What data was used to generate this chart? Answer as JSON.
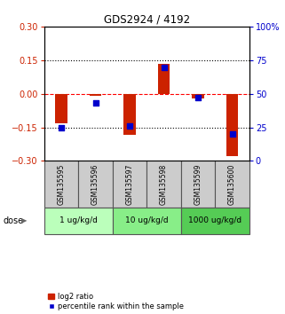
{
  "title": "GDS2924 / 4192",
  "samples": [
    "GSM135595",
    "GSM135596",
    "GSM135597",
    "GSM135598",
    "GSM135599",
    "GSM135600"
  ],
  "log2_ratio": [
    -0.13,
    -0.01,
    -0.185,
    0.135,
    -0.02,
    -0.28
  ],
  "percentile_rank": [
    25,
    43,
    26,
    70,
    47,
    20
  ],
  "dose_groups": [
    {
      "label": "1 ug/kg/d",
      "samples": [
        0,
        1
      ],
      "color": "#bbffbb"
    },
    {
      "label": "10 ug/kg/d",
      "samples": [
        2,
        3
      ],
      "color": "#88ee88"
    },
    {
      "label": "1000 ug/kg/d",
      "samples": [
        4,
        5
      ],
      "color": "#55cc55"
    }
  ],
  "ylim_left": [
    -0.3,
    0.3
  ],
  "ylim_right": [
    0,
    100
  ],
  "yticks_left": [
    -0.3,
    -0.15,
    0,
    0.15,
    0.3
  ],
  "yticks_right": [
    0,
    25,
    50,
    75,
    100
  ],
  "bar_color": "#cc2200",
  "dot_color": "#0000cc",
  "bar_width": 0.35,
  "dot_size": 18,
  "legend_bar_label": "log2 ratio",
  "legend_dot_label": "percentile rank within the sample",
  "dose_label": "dose",
  "left_axis_color": "#cc2200",
  "right_axis_color": "#0000cc",
  "background_color": "#ffffff",
  "sample_box_color": "#cccccc"
}
